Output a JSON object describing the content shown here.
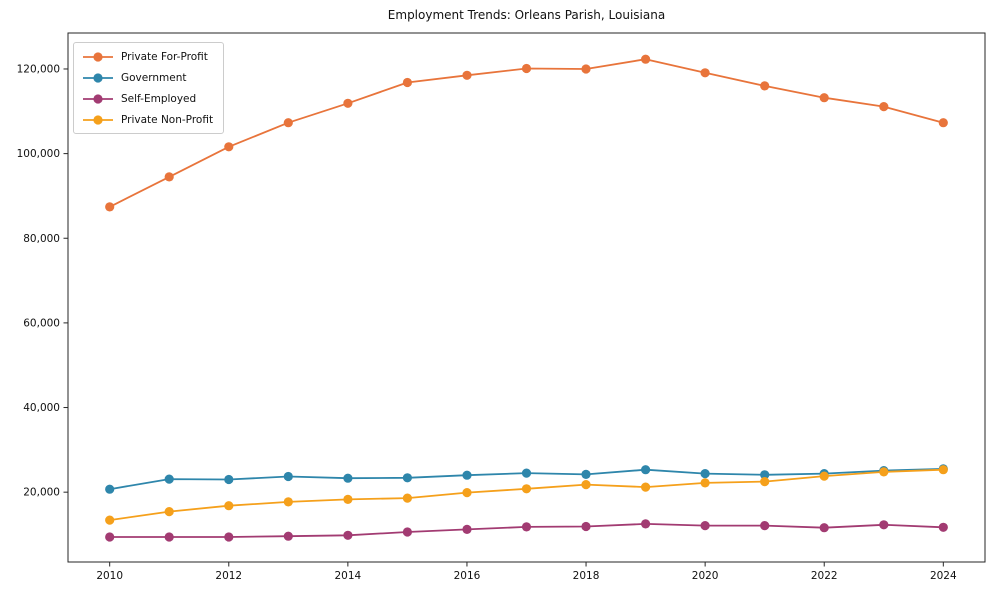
{
  "title": "Employment Trends: Orleans Parish, Louisiana",
  "chart_data": {
    "type": "line",
    "x": [
      2010,
      2011,
      2012,
      2013,
      2014,
      2015,
      2016,
      2017,
      2018,
      2019,
      2020,
      2021,
      2022,
      2023,
      2024
    ],
    "series": [
      {
        "name": "Private For-Profit",
        "color": "#E8743B",
        "values": [
          87400,
          94500,
          101600,
          107300,
          111900,
          116800,
          118500,
          120100,
          120000,
          122300,
          119100,
          116000,
          113200,
          111100,
          107300
        ]
      },
      {
        "name": "Government",
        "color": "#2E86AB",
        "values": [
          20700,
          23100,
          23000,
          23700,
          23300,
          23400,
          24000,
          24500,
          24200,
          25300,
          24400,
          24100,
          24400,
          25100,
          25500
        ]
      },
      {
        "name": "Self-Employed",
        "color": "#A23B72",
        "values": [
          9400,
          9400,
          9400,
          9600,
          9800,
          10600,
          11200,
          11800,
          11900,
          12500,
          12100,
          12100,
          11600,
          12300,
          11700
        ]
      },
      {
        "name": "Private Non-Profit",
        "color": "#F5A01B",
        "values": [
          13400,
          15400,
          16800,
          17700,
          18300,
          18600,
          19900,
          20800,
          21800,
          21200,
          22200,
          22500,
          23800,
          24800,
          25300
        ]
      }
    ],
    "xlabel": "",
    "ylabel": "",
    "xticks": [
      2010,
      2012,
      2014,
      2016,
      2018,
      2020,
      2022,
      2024
    ],
    "xtick_labels": [
      "2010",
      "2012",
      "2014",
      "2016",
      "2018",
      "2020",
      "2022",
      "2024"
    ],
    "yticks": [
      20000,
      40000,
      60000,
      80000,
      100000,
      120000
    ],
    "ytick_labels": [
      "20,000",
      "40,000",
      "60,000",
      "80,000",
      "100,000",
      "120,000"
    ],
    "xlim": [
      2009.3,
      2024.7
    ],
    "ylim": [
      3500,
      128500
    ],
    "legend_position": "upper left",
    "grid": false,
    "axis_color": "#262626",
    "text_color": "#111111",
    "marker": "circle",
    "marker_radius": 4.6,
    "line_width": 1.8
  }
}
